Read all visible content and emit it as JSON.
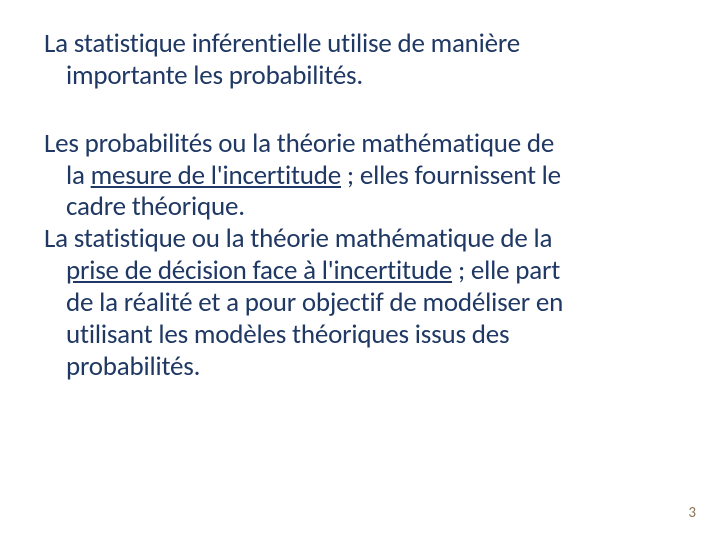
{
  "text_color": "#1f3864",
  "background_color": "#ffffff",
  "page_number_color": "#8b7355",
  "font_size_pt": 20,
  "page_number_fontsize_pt": 11,
  "p1_a": "La statistique inférentielle utilise de manière",
  "p1_b": "importante les probabilités.",
  "p2_a": "Les probabilités ou la théorie mathématique de",
  "p2_b_pre": "la ",
  "p2_b_u": "mesure de l'incertitude",
  "p2_b_post": " ; elles fournissent le",
  "p2_c": "cadre théorique.",
  "p3_a": "La statistique ou la théorie mathématique de la",
  "p3_b_u": "prise de décision face à l'incertitude",
  "p3_b_post": " ; elle part",
  "p3_c": "de la réalité et a pour objectif de modéliser en",
  "p3_d": "utilisant les modèles théoriques issus des",
  "p3_e": "probabilités.",
  "page_number": "3"
}
